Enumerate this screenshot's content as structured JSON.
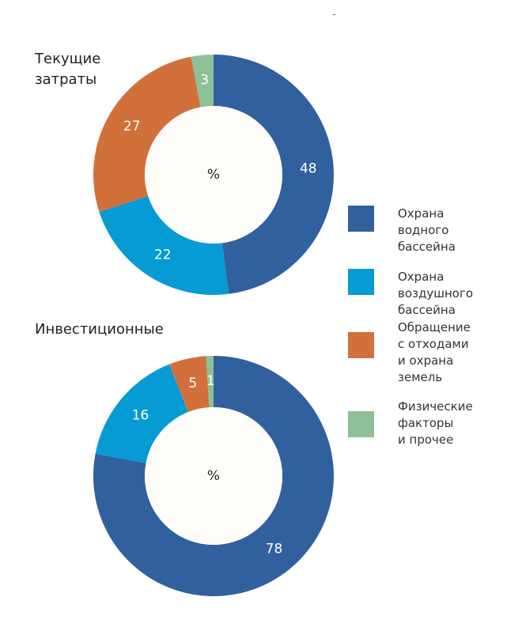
{
  "chart_data": [
    {
      "type": "pie",
      "title": "Текущие\nзатраты",
      "center_label": "%",
      "categories": [
        "Охрана водного бассейна",
        "Охрана воздушного бассейна",
        "Обращение с отходами и охрана земель",
        "Физические факторы и прочее"
      ],
      "values": [
        48,
        22,
        27,
        3
      ],
      "value_labels": [
        "48",
        "22",
        "27",
        "3"
      ],
      "colors": [
        "#30609e",
        "#069bd4",
        "#d2703c",
        "#8dc097"
      ]
    },
    {
      "type": "pie",
      "title": "Инвестиционные",
      "center_label": "%",
      "categories": [
        "Охрана водного бассейна",
        "Охрана воздушного бассейна",
        "Обращение с отходами и охрана земель",
        "Физические факторы и прочее"
      ],
      "values": [
        78,
        16,
        5,
        1
      ],
      "value_labels": [
        "78",
        "16",
        "5",
        "1"
      ],
      "colors": [
        "#30609e",
        "#069bd4",
        "#d2703c",
        "#8dc097"
      ]
    }
  ],
  "legend": {
    "placement": "right",
    "items": [
      {
        "label": "Охрана\nводного\nбассейна",
        "color": "#30609e"
      },
      {
        "label": "Охрана\nвоздушного\nбассейна",
        "color": "#069bd4"
      },
      {
        "label": "Обращение\nс отходами\nи охрана\nземель",
        "color": "#d2703c"
      },
      {
        "label": "Физические\nфакторы\nи прочее",
        "color": "#8dc097"
      }
    ]
  },
  "style": {
    "hole_color": "#fffdf9",
    "label_color": "#ffffff",
    "center_color": "#222222"
  }
}
